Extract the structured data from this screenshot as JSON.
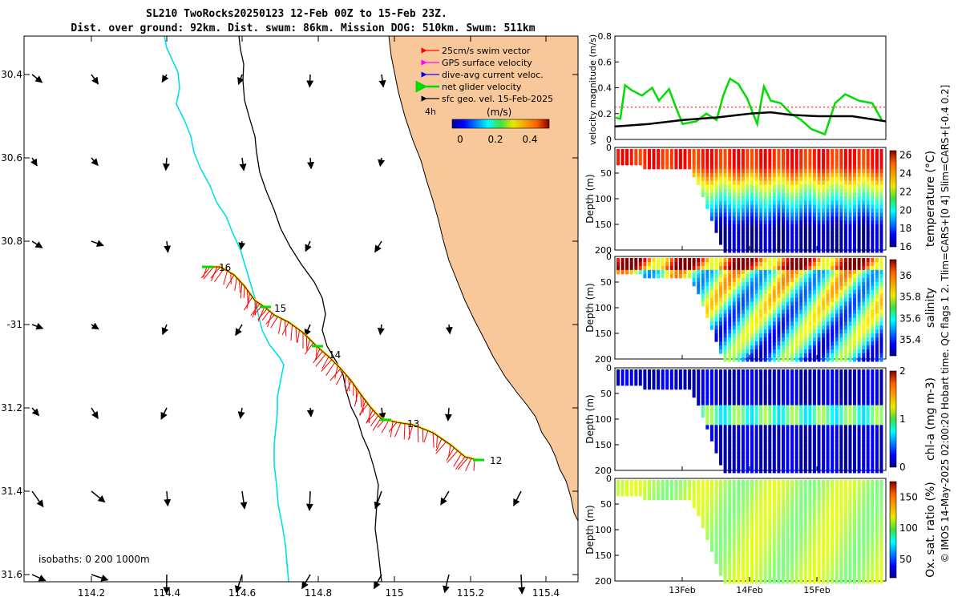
{
  "title": {
    "line1": "SL210 TwoRocks20250123 12-Feb 00Z to 15-Feb 23Z.",
    "line2": "Dist. over ground: 92km. Dist. swum: 86km. Mission DOG: 510km. Swum: 511km"
  },
  "side_note": "© IMOS 14-May-2025 02:00:20 Hobart time. QC flags 1  2. Tlim=CARS+[0 4] Slim=CARS+[-0.4 0.2]",
  "map": {
    "legend": [
      {
        "label": "25cm/s swim vector",
        "color": "#ff0000"
      },
      {
        "label": "GPS surface velocity",
        "color": "#ff00ff"
      },
      {
        "label": "dive-avg current veloc.",
        "color": "#0000ff"
      },
      {
        "label": "net glider velocity",
        "color": "#00dd00"
      },
      {
        "label": "sfc geo. vel. 15-Feb-2025",
        "color": "#000000"
      }
    ],
    "cbar_unit": "(m/s)",
    "cbar_ticks": [
      "0",
      "0.2",
      "0.4"
    ],
    "time_step": "4h",
    "isobaths_text": "isobaths: 0   200  1000m",
    "day_labels": [
      "16",
      "15",
      "14",
      "13",
      "12"
    ],
    "lon_ticks": [
      "114.2",
      "114.4",
      "114.6",
      "114.8",
      "115",
      "115.2",
      "115.4"
    ],
    "lat_ticks": [
      "30.4",
      "30.6",
      "30.8",
      "-31",
      "31.2",
      "31.4",
      "31.6"
    ],
    "land_color": "#f8c89a",
    "track_color": "#ffd400"
  },
  "chart_data": [
    {
      "type": "line",
      "title": "velocity magnitude",
      "ylabel": "velocity magnitude (m/s)",
      "ylim": [
        0,
        0.8
      ],
      "yticks": [
        "0",
        "0.2",
        "0.4",
        "0.6",
        "0.8"
      ],
      "x_unit": "days since 12-Feb 00Z",
      "xlim": [
        0,
        4
      ],
      "series": [
        {
          "name": "net glider velocity",
          "color": "#00dd00",
          "x": [
            0,
            0.08,
            0.15,
            0.25,
            0.4,
            0.55,
            0.65,
            0.8,
            0.9,
            1.0,
            1.2,
            1.35,
            1.5,
            1.6,
            1.7,
            1.82,
            1.95,
            2.1,
            2.2,
            2.3,
            2.45,
            2.6,
            2.75,
            2.9,
            3.1,
            3.25,
            3.4,
            3.6,
            3.8,
            3.95
          ],
          "values": [
            0.17,
            0.16,
            0.42,
            0.38,
            0.34,
            0.4,
            0.3,
            0.39,
            0.25,
            0.12,
            0.14,
            0.2,
            0.15,
            0.34,
            0.47,
            0.43,
            0.32,
            0.12,
            0.41,
            0.3,
            0.28,
            0.2,
            0.15,
            0.08,
            0.04,
            0.28,
            0.35,
            0.3,
            0.28,
            0.14
          ]
        },
        {
          "name": "sfc geo. velocity",
          "color": "#000000",
          "x": [
            0,
            0.5,
            1.0,
            1.5,
            2.0,
            2.3,
            2.6,
            3.0,
            3.5,
            4.0
          ],
          "values": [
            0.1,
            0.12,
            0.15,
            0.17,
            0.2,
            0.21,
            0.19,
            0.18,
            0.18,
            0.14
          ]
        },
        {
          "name": "25cm/s reference",
          "color": "#ff0000",
          "style": "dotted",
          "x": [
            0,
            4
          ],
          "values": [
            0.25,
            0.25
          ]
        }
      ]
    },
    {
      "type": "heatmap",
      "title": "temperature",
      "ylabel": "Depth (m)",
      "cbar_label": "temperature (°C)",
      "ylim": [
        200,
        0
      ],
      "yticks": [
        "0",
        "50",
        "100",
        "150",
        "200"
      ],
      "clim": [
        16,
        26.5
      ],
      "cbar_ticks": [
        "16",
        "18",
        "20",
        "22",
        "24",
        "26"
      ],
      "x_ticks": [
        "13Feb",
        "14Feb",
        "15Feb"
      ],
      "note": "warm (~25°C) surface layer over cold (~16-17°C) water below 150 m"
    },
    {
      "type": "heatmap",
      "title": "salinity",
      "ylabel": "Depth (m)",
      "cbar_label": "salinity",
      "ylim": [
        200,
        0
      ],
      "yticks": [
        "0",
        "50",
        "100",
        "150",
        "200"
      ],
      "clim": [
        35.25,
        36.15
      ],
      "cbar_ticks": [
        "35.4",
        "35.6",
        "35.8",
        "36"
      ],
      "x_ticks": [
        "13Feb",
        "14Feb",
        "15Feb"
      ]
    },
    {
      "type": "heatmap",
      "title": "chl-a",
      "ylabel": "Depth (m)",
      "cbar_label": "chl-a (mg m-3)",
      "ylim": [
        200,
        0
      ],
      "yticks": [
        "0",
        "50",
        "100",
        "150",
        "200"
      ],
      "clim": [
        0,
        2
      ],
      "cbar_ticks": [
        "0",
        "1",
        "2"
      ],
      "x_ticks": [
        "13Feb",
        "14Feb",
        "15Feb"
      ]
    },
    {
      "type": "heatmap",
      "title": "Ox. sat. ratio",
      "ylabel": "Depth (m)",
      "cbar_label": "Ox. sat. ratio (%)",
      "ylim": [
        200,
        0
      ],
      "yticks": [
        "0",
        "50",
        "100",
        "150",
        "200"
      ],
      "clim": [
        20,
        175
      ],
      "cbar_ticks": [
        "50",
        "100",
        "150"
      ],
      "x_ticks": [
        "13Feb",
        "14Feb",
        "15Feb"
      ]
    }
  ]
}
